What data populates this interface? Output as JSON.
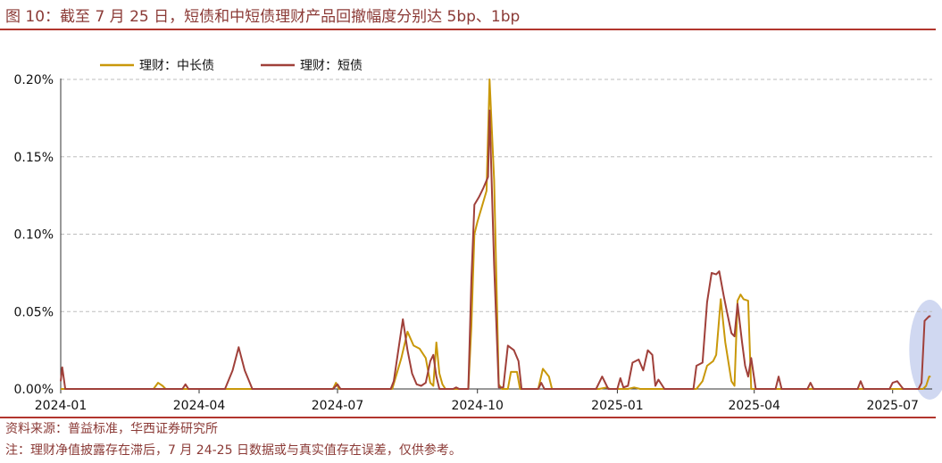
{
  "header": {
    "title": "图 10：截至 7 月 25 日，短债和中短债理财产品回撤幅度分别达 5bp、1bp"
  },
  "footer": {
    "source": "资料来源：普益标准，华西证券研究所",
    "note": "注：理财净值披露存在滞后，7 月 24-25 日数据或与真实值存在误差，仅供参考。"
  },
  "chart_data": {
    "type": "line",
    "y_ticks": [
      "0.00%",
      "0.05%",
      "0.10%",
      "0.15%",
      "0.20%"
    ],
    "y_tick_values": [
      0,
      0.05,
      0.1,
      0.15,
      0.2
    ],
    "x_ticks": [
      "2024-01",
      "2024-04",
      "2024-07",
      "2024-10",
      "2025-01",
      "2025-04",
      "2025-07"
    ],
    "x_tick_dates": [
      "2024-01-01",
      "2024-04-01",
      "2024-07-01",
      "2024-10-01",
      "2025-01-01",
      "2025-04-01",
      "2025-07-01"
    ],
    "xlim": [
      "2024-01-01",
      "2025-07-27"
    ],
    "ylim": [
      0,
      0.2
    ],
    "grid": "horizontal-dashed",
    "legend_position": "top-left",
    "highlight": {
      "shape": "ellipse",
      "color": "#aab8e6",
      "around": [
        "2025-07-18",
        "2025-07-27"
      ]
    },
    "series": [
      {
        "name": "理财：中长债",
        "color": "#c9980a",
        "points": [
          [
            "2024-01-01",
            0
          ],
          [
            "2024-03-02",
            0
          ],
          [
            "2024-03-05",
            0.004
          ],
          [
            "2024-03-08",
            0.002
          ],
          [
            "2024-03-10",
            0
          ],
          [
            "2024-06-28",
            0
          ],
          [
            "2024-06-30",
            0.004
          ],
          [
            "2024-07-02",
            0
          ],
          [
            "2024-08-06",
            0
          ],
          [
            "2024-08-12",
            0.02
          ],
          [
            "2024-08-16",
            0.037
          ],
          [
            "2024-08-20",
            0.028
          ],
          [
            "2024-08-24",
            0.026
          ],
          [
            "2024-08-28",
            0.02
          ],
          [
            "2024-08-31",
            0.004
          ],
          [
            "2024-09-02",
            0.002
          ],
          [
            "2024-09-04",
            0.03
          ],
          [
            "2024-09-06",
            0.01
          ],
          [
            "2024-09-08",
            0.003
          ],
          [
            "2024-09-10",
            0
          ],
          [
            "2024-09-25",
            0
          ],
          [
            "2024-09-27",
            0.04
          ],
          [
            "2024-09-29",
            0.1
          ],
          [
            "2024-10-01",
            0.108
          ],
          [
            "2024-10-04",
            0.118
          ],
          [
            "2024-10-07",
            0.128
          ],
          [
            "2024-10-09",
            0.2
          ],
          [
            "2024-10-12",
            0.135
          ],
          [
            "2024-10-15",
            0.003
          ],
          [
            "2024-10-17",
            0
          ],
          [
            "2024-10-21",
            0
          ],
          [
            "2024-10-23",
            0.011
          ],
          [
            "2024-10-27",
            0.011
          ],
          [
            "2024-10-29",
            0
          ],
          [
            "2024-11-10",
            0
          ],
          [
            "2024-11-13",
            0.013
          ],
          [
            "2024-11-17",
            0.008
          ],
          [
            "2024-11-19",
            0
          ],
          [
            "2024-12-20",
            0
          ],
          [
            "2024-12-25",
            0.001
          ],
          [
            "2024-12-27",
            0
          ],
          [
            "2025-01-08",
            0
          ],
          [
            "2025-01-12",
            0.001
          ],
          [
            "2025-01-16",
            0
          ],
          [
            "2025-02-22",
            0
          ],
          [
            "2025-02-26",
            0.005
          ],
          [
            "2025-03-01",
            0.015
          ],
          [
            "2025-03-05",
            0.018
          ],
          [
            "2025-03-07",
            0.022
          ],
          [
            "2025-03-10",
            0.058
          ],
          [
            "2025-03-13",
            0.03
          ],
          [
            "2025-03-17",
            0.005
          ],
          [
            "2025-03-19",
            0.002
          ],
          [
            "2025-03-21",
            0.057
          ],
          [
            "2025-03-23",
            0.061
          ],
          [
            "2025-03-25",
            0.058
          ],
          [
            "2025-03-28",
            0.057
          ],
          [
            "2025-03-30",
            0
          ],
          [
            "2025-07-21",
            0
          ],
          [
            "2025-07-23",
            0.002
          ],
          [
            "2025-07-25",
            0.008
          ],
          [
            "2025-07-26",
            0.008
          ]
        ]
      },
      {
        "name": "理财：短债",
        "color": "#a0403a",
        "points": [
          [
            "2024-01-01",
            0.005
          ],
          [
            "2024-01-02",
            0.014
          ],
          [
            "2024-01-04",
            0
          ],
          [
            "2024-03-21",
            0
          ],
          [
            "2024-03-23",
            0.003
          ],
          [
            "2024-03-25",
            0
          ],
          [
            "2024-04-18",
            0
          ],
          [
            "2024-04-23",
            0.012
          ],
          [
            "2024-04-27",
            0.027
          ],
          [
            "2024-05-01",
            0.012
          ],
          [
            "2024-05-06",
            0
          ],
          [
            "2024-06-28",
            0
          ],
          [
            "2024-07-01",
            0.003
          ],
          [
            "2024-07-03",
            0
          ],
          [
            "2024-08-05",
            0
          ],
          [
            "2024-08-07",
            0.005
          ],
          [
            "2024-08-10",
            0.025
          ],
          [
            "2024-08-13",
            0.045
          ],
          [
            "2024-08-16",
            0.025
          ],
          [
            "2024-08-19",
            0.01
          ],
          [
            "2024-08-22",
            0.003
          ],
          [
            "2024-08-25",
            0.002
          ],
          [
            "2024-08-28",
            0.004
          ],
          [
            "2024-08-31",
            0.018
          ],
          [
            "2024-09-02",
            0.022
          ],
          [
            "2024-09-04",
            0.008
          ],
          [
            "2024-09-06",
            0
          ],
          [
            "2024-09-15",
            0
          ],
          [
            "2024-09-17",
            0.001
          ],
          [
            "2024-09-19",
            0
          ],
          [
            "2024-09-25",
            0
          ],
          [
            "2024-09-27",
            0.07
          ],
          [
            "2024-09-29",
            0.119
          ],
          [
            "2024-10-02",
            0.124
          ],
          [
            "2024-10-05",
            0.13
          ],
          [
            "2024-10-08",
            0.137
          ],
          [
            "2024-10-09",
            0.18
          ],
          [
            "2024-10-12",
            0.08
          ],
          [
            "2024-10-15",
            0.001
          ],
          [
            "2024-10-18",
            0.001
          ],
          [
            "2024-10-21",
            0.028
          ],
          [
            "2024-10-25",
            0.025
          ],
          [
            "2024-10-28",
            0.018
          ],
          [
            "2024-10-30",
            0
          ],
          [
            "2024-11-10",
            0
          ],
          [
            "2024-11-12",
            0.004
          ],
          [
            "2024-11-14",
            0
          ],
          [
            "2024-12-18",
            0
          ],
          [
            "2024-12-22",
            0.008
          ],
          [
            "2024-12-26",
            0
          ],
          [
            "2025-01-01",
            0
          ],
          [
            "2025-01-03",
            0.007
          ],
          [
            "2025-01-05",
            0.001
          ],
          [
            "2025-01-08",
            0.002
          ],
          [
            "2025-01-11",
            0.017
          ],
          [
            "2025-01-15",
            0.019
          ],
          [
            "2025-01-18",
            0.012
          ],
          [
            "2025-01-21",
            0.025
          ],
          [
            "2025-01-24",
            0.022
          ],
          [
            "2025-01-26",
            0.002
          ],
          [
            "2025-01-28",
            0.006
          ],
          [
            "2025-02-01",
            0
          ],
          [
            "2025-02-20",
            0
          ],
          [
            "2025-02-22",
            0.015
          ],
          [
            "2025-02-26",
            0.017
          ],
          [
            "2025-03-01",
            0.056
          ],
          [
            "2025-03-04",
            0.075
          ],
          [
            "2025-03-07",
            0.074
          ],
          [
            "2025-03-09",
            0.076
          ],
          [
            "2025-03-12",
            0.06
          ],
          [
            "2025-03-14",
            0.05
          ],
          [
            "2025-03-17",
            0.036
          ],
          [
            "2025-03-19",
            0.034
          ],
          [
            "2025-03-21",
            0.055
          ],
          [
            "2025-03-24",
            0.03
          ],
          [
            "2025-03-26",
            0.015
          ],
          [
            "2025-03-28",
            0.008
          ],
          [
            "2025-03-30",
            0.02
          ],
          [
            "2025-04-02",
            0
          ],
          [
            "2025-04-15",
            0
          ],
          [
            "2025-04-17",
            0.008
          ],
          [
            "2025-04-19",
            0
          ],
          [
            "2025-05-06",
            0
          ],
          [
            "2025-05-08",
            0.004
          ],
          [
            "2025-05-10",
            0
          ],
          [
            "2025-06-08",
            0
          ],
          [
            "2025-06-10",
            0.005
          ],
          [
            "2025-06-12",
            0
          ],
          [
            "2025-06-29",
            0
          ],
          [
            "2025-07-01",
            0.004
          ],
          [
            "2025-07-04",
            0.005
          ],
          [
            "2025-07-08",
            0
          ],
          [
            "2025-07-18",
            0
          ],
          [
            "2025-07-20",
            0.004
          ],
          [
            "2025-07-22",
            0.044
          ],
          [
            "2025-07-25",
            0.047
          ],
          [
            "2025-07-26",
            0.047
          ]
        ]
      }
    ]
  }
}
